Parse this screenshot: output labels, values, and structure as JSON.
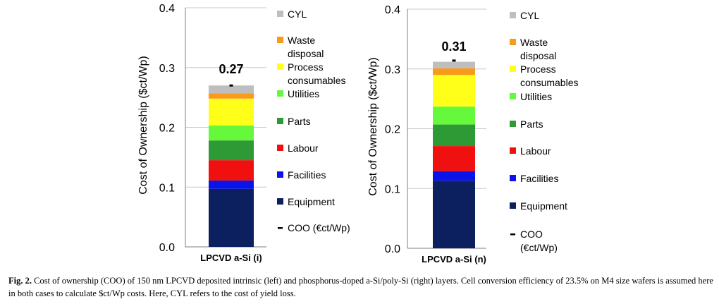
{
  "chart_data": [
    {
      "type": "bar",
      "stacked": true,
      "categories": [
        "LPCVD a-Si (i)"
      ],
      "ylabel": "Cost of Ownership ($ct/Wp)",
      "ylim": [
        0,
        0.4
      ],
      "yticks": [
        "0.0",
        "0.1",
        "0.2",
        "0.3",
        "0.4"
      ],
      "total_label": "0.27",
      "coo": 0.27,
      "series": [
        {
          "name": "Equipment",
          "color": "#0c2060",
          "values": [
            0.097
          ]
        },
        {
          "name": "Facilities",
          "color": "#0b14e8",
          "values": [
            0.014
          ]
        },
        {
          "name": "Labour",
          "color": "#f01010",
          "values": [
            0.034
          ]
        },
        {
          "name": "Parts",
          "color": "#2e9a36",
          "values": [
            0.033
          ]
        },
        {
          "name": "Utilities",
          "color": "#66f83a",
          "values": [
            0.025
          ]
        },
        {
          "name": "Process consumables",
          "color": "#ffff1a",
          "values": [
            0.045
          ]
        },
        {
          "name": "Waste disposal",
          "color": "#f99a1a",
          "values": [
            0.009
          ]
        },
        {
          "name": "CYL",
          "color": "#bebebe",
          "values": [
            0.013
          ]
        }
      ],
      "legend": [
        {
          "key": "cyl",
          "lines": [
            "CYL"
          ],
          "color": "#bebebe",
          "marker": "square"
        },
        {
          "key": "waste",
          "lines": [
            "Waste",
            "disposal"
          ],
          "color": "#f99a1a",
          "marker": "square"
        },
        {
          "key": "process",
          "lines": [
            "Process",
            "consumables"
          ],
          "color": "#ffff1a",
          "marker": "square"
        },
        {
          "key": "utilities",
          "lines": [
            "Utilities"
          ],
          "color": "#66f83a",
          "marker": "square"
        },
        {
          "key": "parts",
          "lines": [
            "Parts"
          ],
          "color": "#2e9a36",
          "marker": "square"
        },
        {
          "key": "labour",
          "lines": [
            "Labour"
          ],
          "color": "#f01010",
          "marker": "square"
        },
        {
          "key": "facilities",
          "lines": [
            "Facilities"
          ],
          "color": "#0b14e8",
          "marker": "square"
        },
        {
          "key": "equipment",
          "lines": [
            "Equipment"
          ],
          "color": "#0c2060",
          "marker": "square"
        },
        {
          "key": "coo",
          "lines": [
            "COO (€ct/Wp)"
          ],
          "color": "#000000",
          "marker": "dash"
        }
      ]
    },
    {
      "type": "bar",
      "stacked": true,
      "categories": [
        "LPCVD a-Si (n)"
      ],
      "ylabel": "Cost of Ownership ($ct/Wp)",
      "ylim": [
        0,
        0.4
      ],
      "yticks": [
        "0.0",
        "0.1",
        "0.2",
        "0.3",
        "0.4"
      ],
      "total_label": "0.31",
      "coo": 0.314,
      "series": [
        {
          "name": "Equipment",
          "color": "#0c2060",
          "values": [
            0.113
          ]
        },
        {
          "name": "Facilities",
          "color": "#0b14e8",
          "values": [
            0.016
          ]
        },
        {
          "name": "Labour",
          "color": "#f01010",
          "values": [
            0.042
          ]
        },
        {
          "name": "Parts",
          "color": "#2e9a36",
          "values": [
            0.036
          ]
        },
        {
          "name": "Utilities",
          "color": "#66f83a",
          "values": [
            0.03
          ]
        },
        {
          "name": "Process consumables",
          "color": "#ffff1a",
          "values": [
            0.053
          ]
        },
        {
          "name": "Waste disposal",
          "color": "#f99a1a",
          "values": [
            0.011
          ]
        },
        {
          "name": "CYL",
          "color": "#bebebe",
          "values": [
            0.011
          ]
        }
      ],
      "legend": [
        {
          "key": "cyl",
          "lines": [
            "CYL"
          ],
          "color": "#bebebe",
          "marker": "square"
        },
        {
          "key": "waste",
          "lines": [
            "Waste",
            "disposal"
          ],
          "color": "#f99a1a",
          "marker": "square"
        },
        {
          "key": "process",
          "lines": [
            "Process",
            "consumables"
          ],
          "color": "#ffff1a",
          "marker": "square"
        },
        {
          "key": "utilities",
          "lines": [
            "Utilities"
          ],
          "color": "#66f83a",
          "marker": "square"
        },
        {
          "key": "parts",
          "lines": [
            "Parts"
          ],
          "color": "#2e9a36",
          "marker": "square"
        },
        {
          "key": "labour",
          "lines": [
            "Labour"
          ],
          "color": "#f01010",
          "marker": "square"
        },
        {
          "key": "facilities",
          "lines": [
            "Facilities"
          ],
          "color": "#0b14e8",
          "marker": "square"
        },
        {
          "key": "equipment",
          "lines": [
            "Equipment"
          ],
          "color": "#0c2060",
          "marker": "square"
        },
        {
          "key": "coo",
          "lines": [
            "COO",
            "(€ct/Wp)"
          ],
          "color": "#000000",
          "marker": "dash"
        }
      ]
    }
  ],
  "caption": {
    "label": "Fig. 2.",
    "text": "Cost of ownership (COO) of 150 nm LPCVD deposited intrinsic (left) and phosphorus-doped a-Si/poly-Si (right) layers. Cell conversion efficiency of 23.5% on M4 size wafers is assumed here in both cases to calculate $ct/Wp costs. Here, CYL refers to the cost of yield loss."
  }
}
